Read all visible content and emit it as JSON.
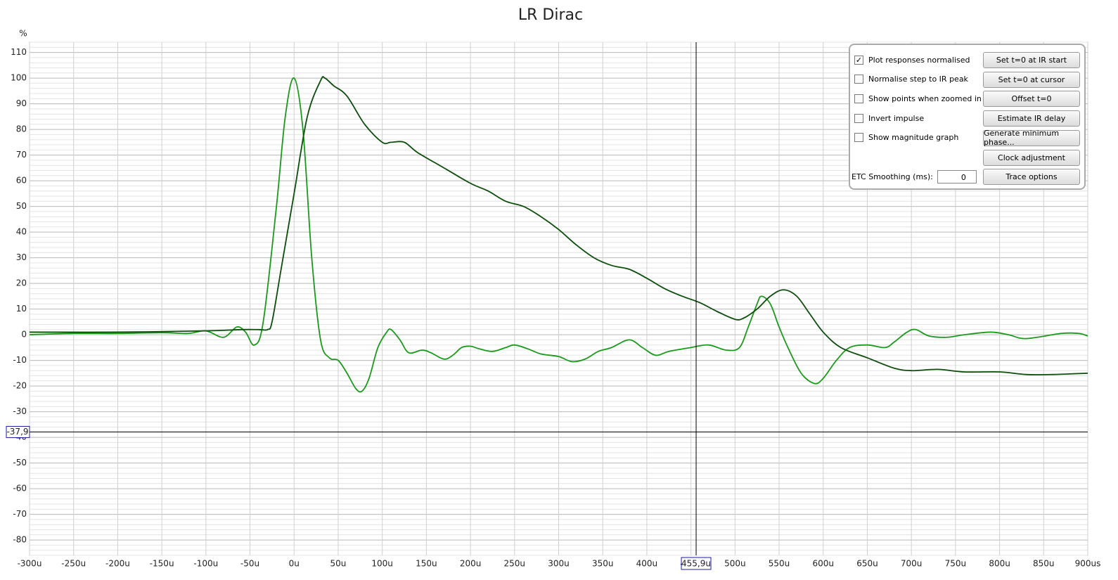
{
  "chart_data": {
    "type": "line",
    "title": "LR Dirac",
    "y_label": "%",
    "xlim": [
      -300,
      900
    ],
    "ylim": [
      -86,
      114
    ],
    "grid": true,
    "xticks": [
      {
        "value": -300,
        "label": "-300u"
      },
      {
        "value": -250,
        "label": "-250u"
      },
      {
        "value": -200,
        "label": "-200u"
      },
      {
        "value": -150,
        "label": "-150u"
      },
      {
        "value": -100,
        "label": "-100u"
      },
      {
        "value": -50,
        "label": "-50u"
      },
      {
        "value": 0,
        "label": "0u"
      },
      {
        "value": 50,
        "label": "50u"
      },
      {
        "value": 100,
        "label": "100u"
      },
      {
        "value": 150,
        "label": "150u"
      },
      {
        "value": 200,
        "label": "200u"
      },
      {
        "value": 250,
        "label": "250u"
      },
      {
        "value": 300,
        "label": "300u"
      },
      {
        "value": 350,
        "label": "350u"
      },
      {
        "value": 400,
        "label": "400u"
      },
      {
        "value": 450,
        "label": "450u"
      },
      {
        "value": 500,
        "label": "500u"
      },
      {
        "value": 550,
        "label": "550u"
      },
      {
        "value": 600,
        "label": "600u"
      },
      {
        "value": 650,
        "label": "650u"
      },
      {
        "value": 700,
        "label": "700u"
      },
      {
        "value": 750,
        "label": "750u"
      },
      {
        "value": 800,
        "label": "800u"
      },
      {
        "value": 850,
        "label": "850u"
      },
      {
        "value": 900,
        "label": "900us"
      }
    ],
    "yticks": [
      110,
      100,
      90,
      80,
      70,
      60,
      50,
      40,
      30,
      20,
      10,
      0,
      -10,
      -20,
      -30,
      -40,
      -50,
      -60,
      -70,
      -80
    ],
    "cursor": {
      "x": 455.9,
      "x_label": "455,9u",
      "y": -37.9,
      "y_label": "-37,9"
    },
    "series": [
      {
        "color": "#1a9a1a",
        "x": [
          -300,
          -250,
          -200,
          -150,
          -120,
          -100,
          -80,
          -65,
          -55,
          -45,
          -35,
          -20,
          -10,
          0,
          10,
          20,
          30,
          40,
          50,
          60,
          70,
          77,
          85,
          95,
          105,
          110,
          120,
          130,
          145,
          155,
          170,
          180,
          190,
          200,
          210,
          225,
          240,
          250,
          265,
          280,
          300,
          315,
          330,
          345,
          360,
          380,
          395,
          410,
          425,
          450,
          470,
          490,
          505,
          515,
          525,
          530,
          540,
          550,
          560,
          575,
          590,
          600,
          615,
          630,
          650,
          670,
          680,
          695,
          705,
          720,
          740,
          760,
          790,
          810,
          830,
          870,
          890,
          900
        ],
        "values": [
          0,
          0.5,
          0.5,
          0.8,
          0.5,
          1.5,
          -1,
          3,
          1,
          -4,
          5,
          50,
          85,
          100,
          80,
          30,
          -2,
          -9,
          -10,
          -15,
          -21,
          -22,
          -17,
          -5,
          1,
          2,
          -2,
          -7,
          -6,
          -7,
          -9.5,
          -8,
          -5,
          -4.5,
          -5.5,
          -6.5,
          -5,
          -4,
          -5.5,
          -7.5,
          -8.5,
          -10.5,
          -9.5,
          -6.5,
          -5,
          -2,
          -5,
          -8,
          -6.5,
          -5,
          -4,
          -6,
          -5,
          3,
          12,
          15,
          12,
          3,
          -5,
          -15,
          -19,
          -17,
          -10,
          -5,
          -4,
          -5,
          -3,
          1,
          2,
          -0.5,
          -1,
          0,
          1,
          0,
          -1.5,
          0.5,
          0.5,
          -0.5
        ]
      },
      {
        "color": "#0b4d0b",
        "x": [
          -300,
          -200,
          -100,
          -60,
          -40,
          -30,
          -25,
          -15,
          0,
          15,
          30,
          35,
          45,
          60,
          80,
          100,
          110,
          125,
          140,
          170,
          200,
          220,
          240,
          260,
          280,
          300,
          320,
          340,
          360,
          380,
          400,
          420,
          440,
          460,
          480,
          500,
          510,
          525,
          540,
          555,
          570,
          585,
          600,
          620,
          650,
          680,
          700,
          730,
          760,
          800,
          830,
          860,
          900
        ],
        "values": [
          1,
          1,
          1.5,
          2,
          2,
          2,
          5,
          25,
          55,
          85,
          99,
          100,
          97,
          93,
          82,
          75,
          75,
          75,
          71,
          65,
          59,
          56,
          52,
          50,
          46,
          41,
          35,
          30,
          27,
          25.5,
          22,
          18,
          15,
          12.5,
          9,
          6,
          6.5,
          10,
          15,
          17.5,
          15,
          8,
          1,
          -5,
          -9,
          -13,
          -14,
          -13.5,
          -14.5,
          -14.5,
          -15.5,
          -15.5,
          -15
        ]
      }
    ]
  },
  "panel": {
    "checkboxes": [
      {
        "label": "Plot responses normalised",
        "checked": true
      },
      {
        "label": "Normalise step to IR peak",
        "checked": false
      },
      {
        "label": "Show points when zoomed in",
        "checked": false
      },
      {
        "label": "Invert impulse",
        "checked": false
      },
      {
        "label": "Show magnitude graph",
        "checked": false
      }
    ],
    "buttons": [
      "Set t=0 at IR start",
      "Set t=0 at cursor",
      "Offset t=0",
      "Estimate IR delay",
      "Generate minimum phase...",
      "Clock adjustment",
      "Trace options"
    ],
    "smoothing": {
      "label": "ETC Smoothing (ms):",
      "value": 0
    }
  }
}
